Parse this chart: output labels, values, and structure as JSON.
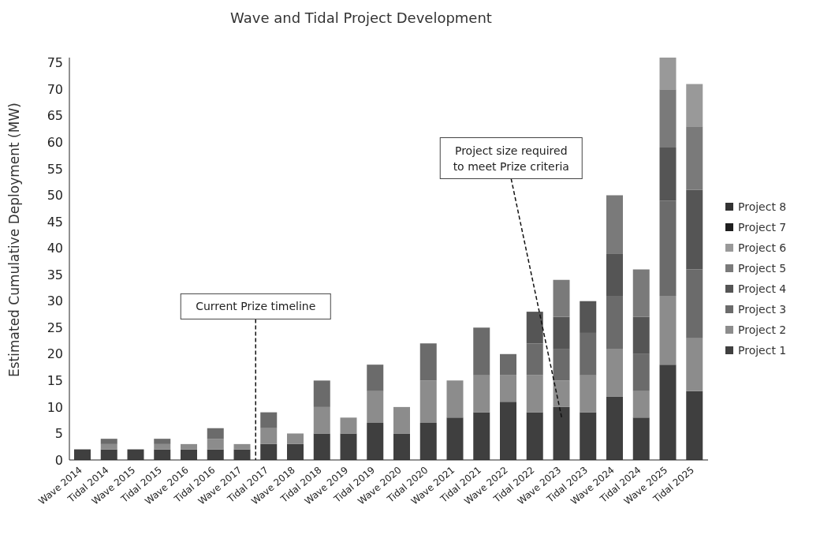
{
  "chart_data": {
    "type": "bar",
    "title": "Wave and Tidal Project Development",
    "ylabel": "Estimated Cumulative Deployment (MW)",
    "categories": [
      "Wave 2014",
      "Tidal 2014",
      "Wave 2015",
      "Tidal 2015",
      "Wave 2016",
      "Tidal 2016",
      "Wave 2017",
      "Tidal 2017",
      "Wave 2018",
      "Tidal 2018",
      "Wave 2019",
      "Tidal 2019",
      "Wave 2020",
      "Tidal 2020",
      "Wave 2021",
      "Tidal 2021",
      "Wave 2022",
      "Tidal 2022",
      "Wave 2023",
      "Tidal 2023",
      "Wave 2024",
      "Tidal 2024",
      "Wave 2025",
      "Tidal 2025"
    ],
    "stacked": true,
    "ylim": [
      0,
      76
    ],
    "yticks": [
      0,
      5,
      10,
      15,
      20,
      25,
      30,
      35,
      40,
      45,
      50,
      55,
      60,
      65,
      70,
      75
    ],
    "grid": false,
    "legend": "right",
    "series": [
      {
        "name": "Project 1",
        "color": "#3f3f3f",
        "values": [
          2,
          2,
          2,
          2,
          2,
          2,
          2,
          3,
          3,
          5,
          5,
          7,
          5,
          7,
          8,
          9,
          11,
          9,
          10,
          9,
          12,
          8,
          18,
          13
        ]
      },
      {
        "name": "Project 2",
        "color": "#8c8c8c",
        "values": [
          0,
          1,
          0,
          1,
          1,
          2,
          1,
          3,
          2,
          5,
          3,
          6,
          5,
          8,
          7,
          7,
          5,
          7,
          5,
          7,
          9,
          5,
          13,
          10
        ]
      },
      {
        "name": "Project 3",
        "color": "#6b6b6b",
        "values": [
          0,
          1,
          0,
          1,
          0,
          2,
          0,
          3,
          0,
          5,
          0,
          5,
          0,
          7,
          0,
          9,
          4,
          6,
          6,
          8,
          10,
          7,
          18,
          13
        ]
      },
      {
        "name": "Project 4",
        "color": "#555555",
        "values": [
          0,
          0,
          0,
          0,
          0,
          0,
          0,
          0,
          0,
          0,
          0,
          0,
          0,
          0,
          0,
          0,
          0,
          6,
          6,
          6,
          8,
          7,
          10,
          15
        ]
      },
      {
        "name": "Project 5",
        "color": "#7a7a7a",
        "values": [
          0,
          0,
          0,
          0,
          0,
          0,
          0,
          0,
          0,
          0,
          0,
          0,
          0,
          0,
          0,
          0,
          0,
          0,
          7,
          0,
          11,
          9,
          11,
          12
        ]
      },
      {
        "name": "Project 6",
        "color": "#999999",
        "values": [
          0,
          0,
          0,
          0,
          0,
          0,
          0,
          0,
          0,
          0,
          0,
          0,
          0,
          0,
          0,
          0,
          0,
          0,
          0,
          0,
          0,
          0,
          6,
          8
        ]
      },
      {
        "name": "Project 7",
        "color": "#1e1e1e",
        "values": [
          0,
          0,
          0,
          0,
          0,
          0,
          0,
          0,
          0,
          0,
          0,
          0,
          0,
          0,
          0,
          0,
          0,
          0,
          0,
          0,
          0,
          0,
          0,
          0
        ]
      },
      {
        "name": "Project 8",
        "color": "#333333",
        "values": [
          0,
          0,
          0,
          0,
          0,
          0,
          0,
          0,
          0,
          0,
          0,
          0,
          0,
          0,
          0,
          0,
          0,
          0,
          0,
          0,
          0,
          0,
          0,
          0
        ]
      }
    ],
    "annotations": [
      "Current Prize timeline",
      "Project size required to meet Prize criteria"
    ]
  }
}
